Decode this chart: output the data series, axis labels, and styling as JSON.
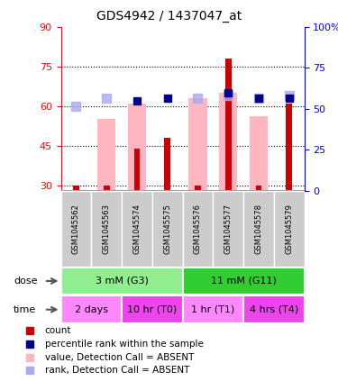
{
  "title": "GDS4942 / 1437047_at",
  "samples": [
    "GSM1045562",
    "GSM1045563",
    "GSM1045574",
    "GSM1045575",
    "GSM1045576",
    "GSM1045577",
    "GSM1045578",
    "GSM1045579"
  ],
  "count_values": [
    30,
    30,
    44,
    48,
    30,
    78,
    30,
    61
  ],
  "absent_value_bars": [
    null,
    55,
    61,
    null,
    63,
    65,
    56,
    null
  ],
  "percentile_rank_right": [
    48,
    null,
    52,
    53,
    null,
    55,
    52,
    53
  ],
  "absent_rank_right": [
    48,
    52,
    null,
    null,
    52,
    55,
    52,
    53
  ],
  "ylim_left": [
    28,
    90
  ],
  "ylim_right": [
    0,
    100
  ],
  "yticks_left": [
    30,
    45,
    60,
    75,
    90
  ],
  "yticks_right": [
    0,
    25,
    50,
    75,
    100
  ],
  "dose_labels": [
    {
      "text": "3 mM (G3)",
      "start": 0,
      "end": 4,
      "color": "#90EE90"
    },
    {
      "text": "11 mM (G11)",
      "start": 4,
      "end": 8,
      "color": "#32CD32"
    }
  ],
  "time_labels": [
    {
      "text": "2 days",
      "start": 0,
      "end": 2,
      "color": "#FF88FF"
    },
    {
      "text": "10 hr (T0)",
      "start": 2,
      "end": 4,
      "color": "#EE44EE"
    },
    {
      "text": "1 hr (T1)",
      "start": 4,
      "end": 6,
      "color": "#FF88FF"
    },
    {
      "text": "4 hrs (T4)",
      "start": 6,
      "end": 8,
      "color": "#EE44EE"
    }
  ],
  "bar_color_count": "#CC0000",
  "bar_color_absent_value": "#FFB6C1",
  "dot_color_percentile": "#00008B",
  "dot_color_absent_rank": "#AAAAEE",
  "sample_box_color": "#CCCCCC",
  "left_axis_color": "red",
  "right_axis_color": "blue"
}
